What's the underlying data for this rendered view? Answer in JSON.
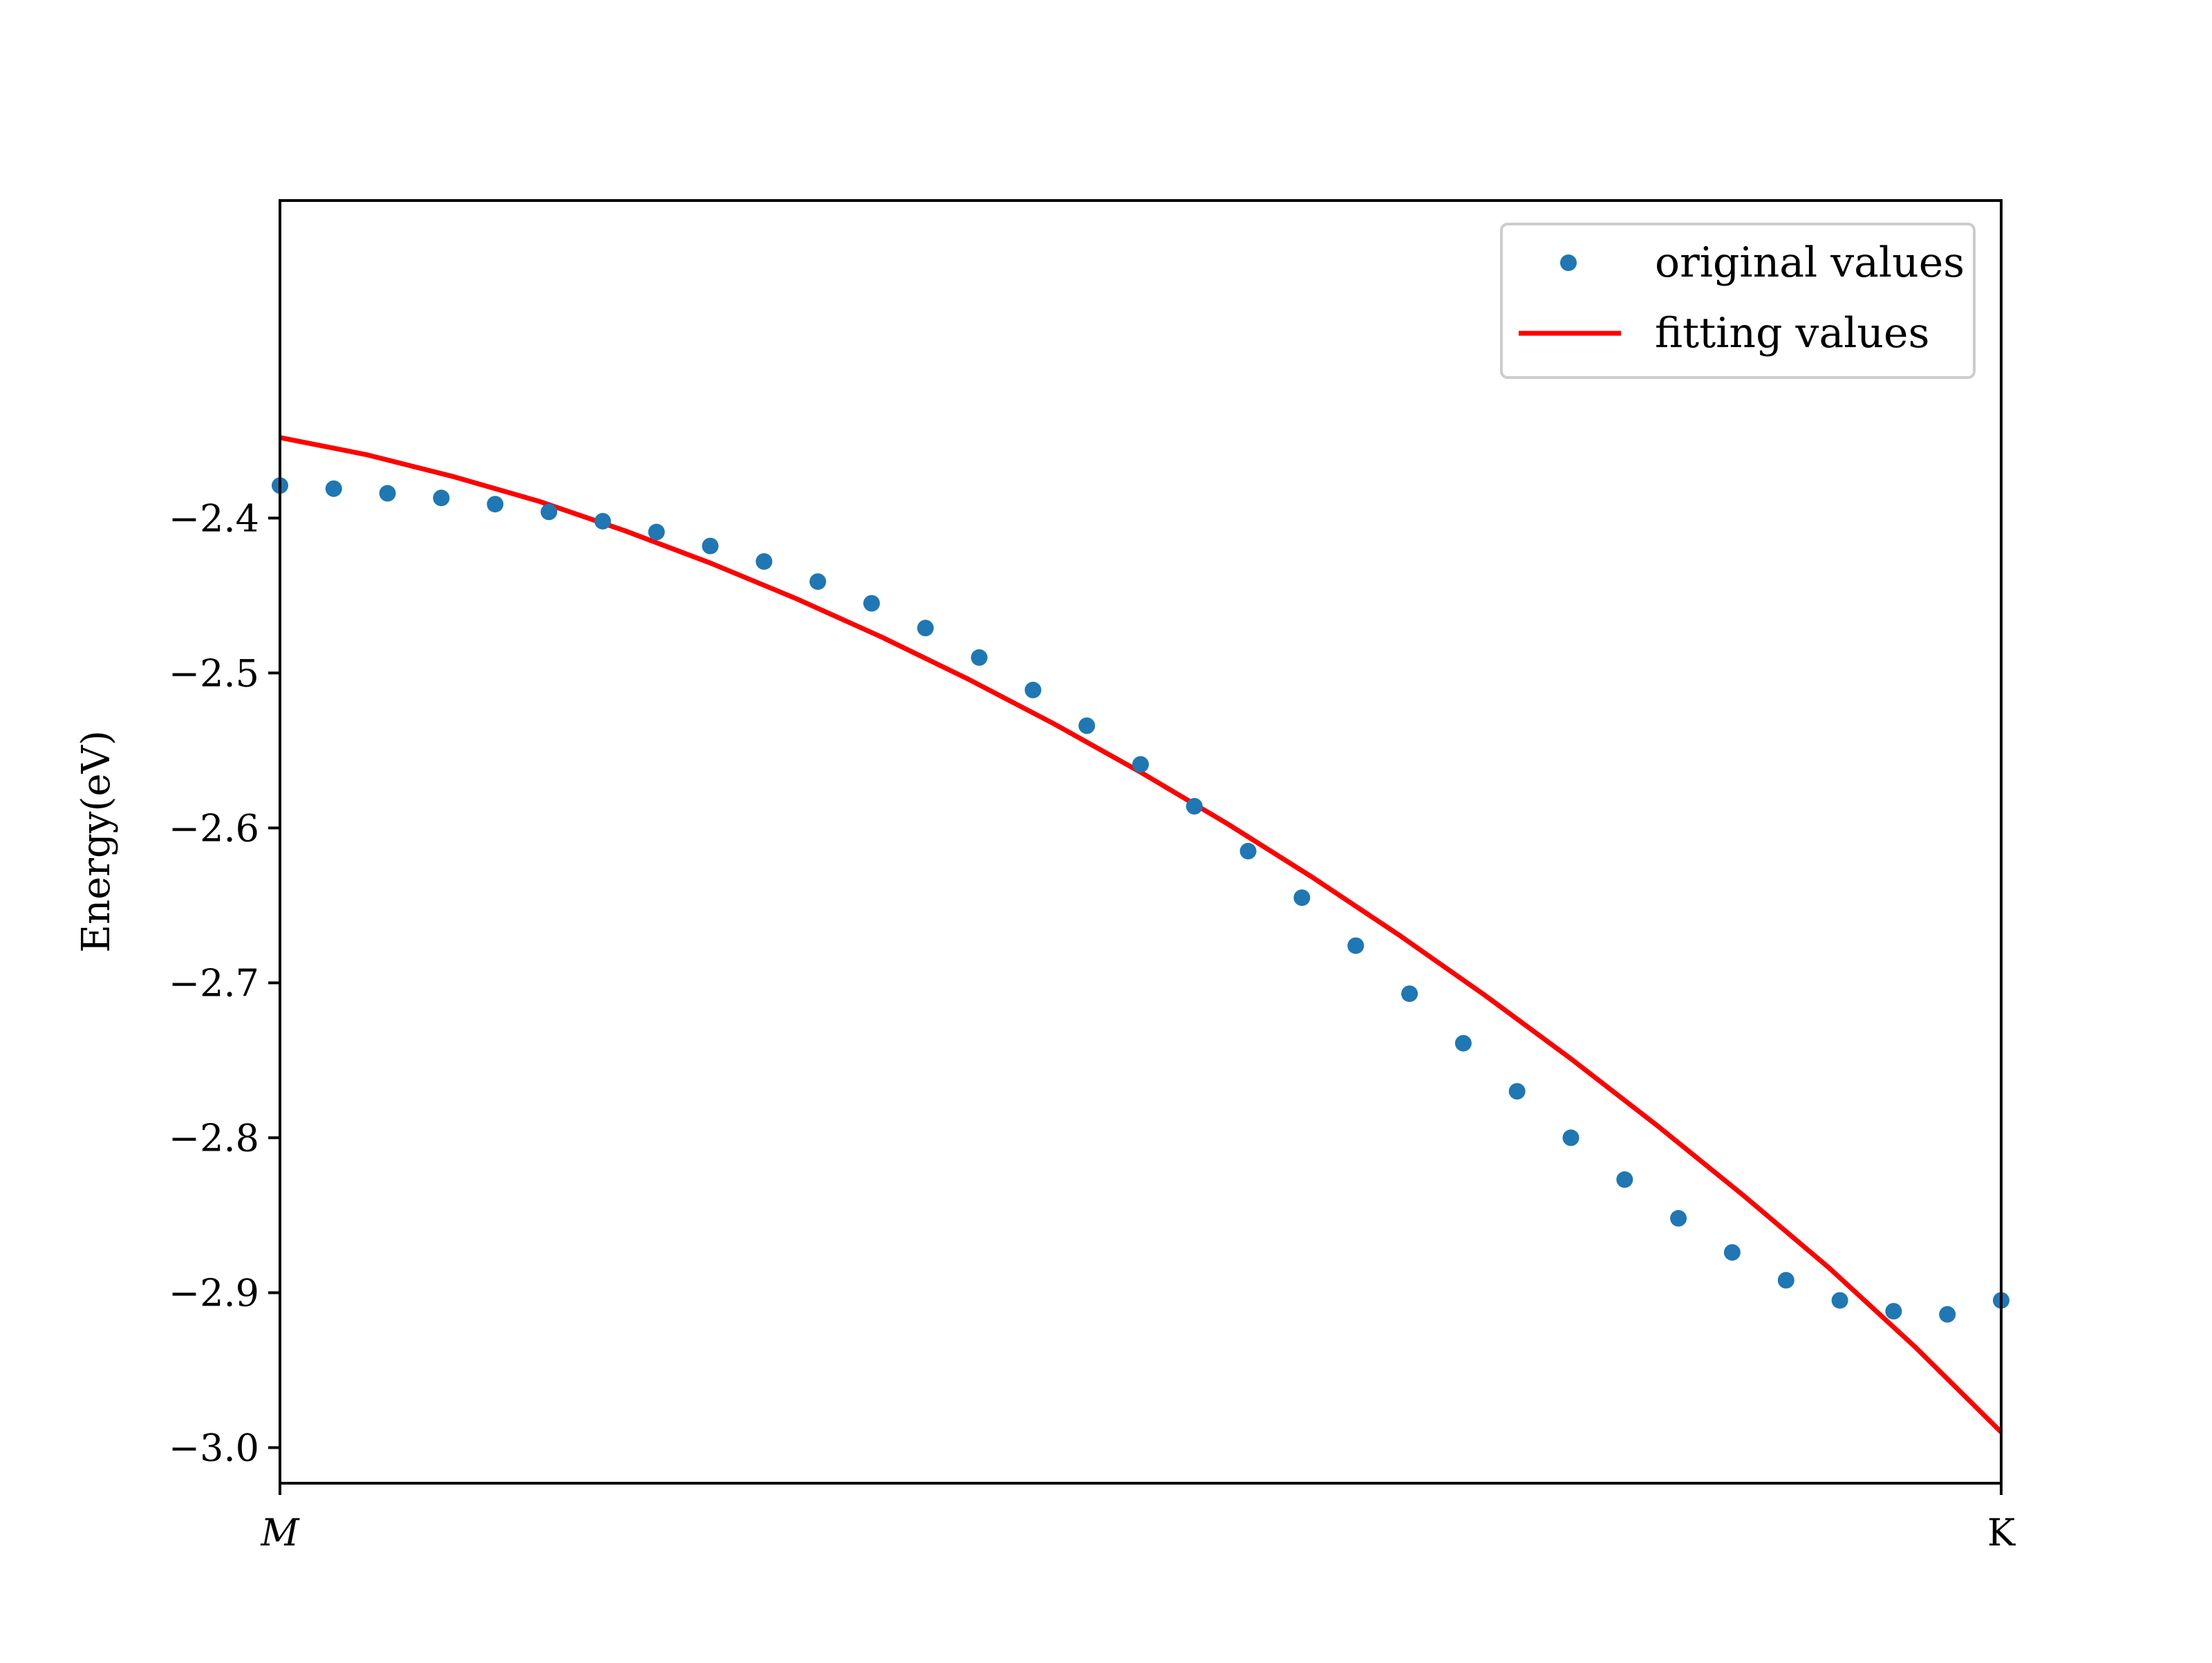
{
  "chart_data": {
    "type": "scatter",
    "title": "",
    "xlabel": "",
    "ylabel": "Energy(eV)",
    "x_ticks": [
      "M",
      "K"
    ],
    "xlim": [
      0,
      1
    ],
    "ylim": [
      -3.023,
      -2.195
    ],
    "y_ticks": [
      "−2.4",
      "−2.5",
      "−2.6",
      "−2.7",
      "−2.8",
      "−2.9",
      "−3.0"
    ],
    "y_tick_values": [
      -2.4,
      -2.5,
      -2.6,
      -2.7,
      -2.8,
      -2.9,
      -3.0
    ],
    "grid": false,
    "legend_position": "top-right",
    "series": [
      {
        "name": "original values",
        "kind": "points",
        "color": "#1f77b4",
        "x": [
          0.0,
          0.03125,
          0.0625,
          0.09375,
          0.125,
          0.15625,
          0.1875,
          0.21875,
          0.25,
          0.28125,
          0.3125,
          0.34375,
          0.375,
          0.40625,
          0.4375,
          0.46875,
          0.5,
          0.53125,
          0.5625,
          0.59375,
          0.625,
          0.65625,
          0.6875,
          0.71875,
          0.75,
          0.78125,
          0.8125,
          0.84375,
          0.875,
          0.90625,
          0.9375,
          0.96875,
          1.0
        ],
        "y": [
          -2.379,
          -2.381,
          -2.384,
          -2.387,
          -2.391,
          -2.396,
          -2.402,
          -2.409,
          -2.418,
          -2.428,
          -2.441,
          -2.455,
          -2.471,
          -2.49,
          -2.511,
          -2.534,
          -2.559,
          -2.586,
          -2.615,
          -2.645,
          -2.676,
          -2.707,
          -2.739,
          -2.77,
          -2.8,
          -2.827,
          -2.852,
          -2.874,
          -2.892,
          -2.905,
          -2.912,
          -2.914,
          -2.905
        ]
      },
      {
        "name": "fitting values",
        "kind": "line",
        "color": "#ff0000",
        "x": [
          0.0,
          0.05,
          0.1,
          0.15,
          0.2,
          0.25,
          0.3,
          0.35,
          0.4,
          0.45,
          0.5,
          0.55,
          0.6,
          0.65,
          0.7,
          0.75,
          0.8,
          0.85,
          0.9,
          0.95,
          1.0
        ],
        "y": [
          -2.348,
          -2.359,
          -2.373,
          -2.389,
          -2.408,
          -2.429,
          -2.452,
          -2.477,
          -2.504,
          -2.533,
          -2.564,
          -2.597,
          -2.632,
          -2.669,
          -2.708,
          -2.749,
          -2.792,
          -2.837,
          -2.884,
          -2.935,
          -2.99
        ]
      }
    ]
  }
}
